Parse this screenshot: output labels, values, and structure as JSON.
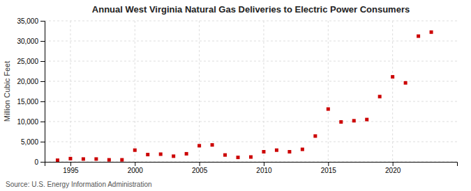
{
  "chart_data": {
    "type": "scatter",
    "title": "Annual West Virginia Natural Gas Deliveries to Electric Power Consumers",
    "ylabel": "Million Cubic Feet",
    "annotations": [
      "Source: U.S. Energy Information Administration"
    ],
    "x": [
      1994,
      1995,
      1996,
      1997,
      1998,
      1999,
      2000,
      2001,
      2002,
      2003,
      2004,
      2005,
      2006,
      2007,
      2008,
      2009,
      2010,
      2011,
      2012,
      2013,
      2014,
      2015,
      2016,
      2017,
      2018,
      2019,
      2020,
      2021,
      2022,
      2023
    ],
    "values": [
      400,
      800,
      700,
      700,
      500,
      500,
      2900,
      1800,
      1900,
      1400,
      2000,
      4000,
      4200,
      1700,
      1100,
      1200,
      2500,
      2900,
      2500,
      3100,
      6400,
      13100,
      9900,
      10200,
      10500,
      16200,
      21100,
      19600,
      31200,
      32200
    ],
    "color": "#cc0000",
    "marker": "square",
    "xlim": [
      1993,
      2025
    ],
    "ylim": [
      0,
      35000
    ],
    "xticks": [
      1995,
      2000,
      2005,
      2010,
      2015,
      2020
    ],
    "yticks": [
      0,
      {
        "value": 5000,
        "label": "5,000"
      },
      {
        "value": 10000,
        "label": "10,000"
      },
      {
        "value": 15000,
        "label": "15,000"
      },
      {
        "value": 20000,
        "label": "20,000"
      },
      {
        "value": 25000,
        "label": "25,000"
      },
      {
        "value": 30000,
        "label": "30,000"
      },
      {
        "value": 35000,
        "label": "35,000"
      }
    ],
    "grid": true
  }
}
